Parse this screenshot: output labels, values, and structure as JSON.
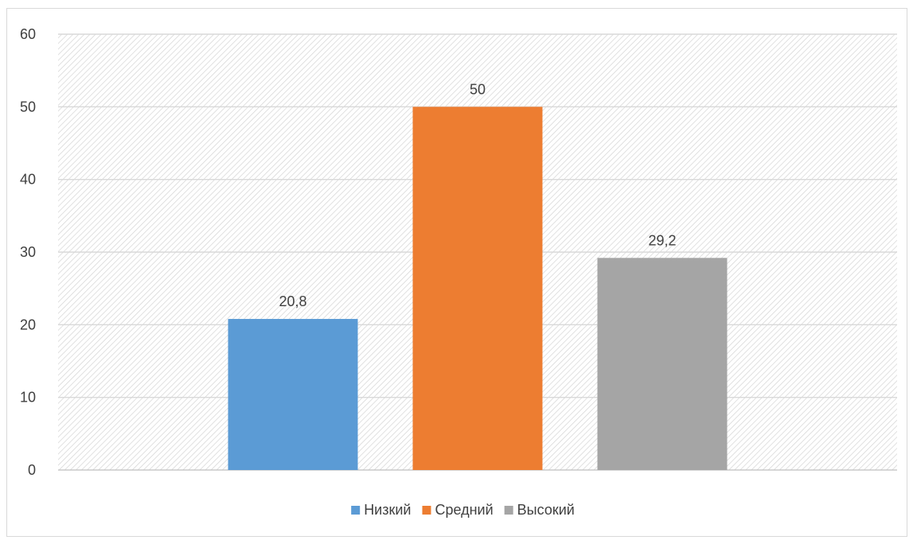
{
  "chart_data": {
    "type": "bar",
    "categories": [
      "Низкий",
      "Средний",
      "Высокий"
    ],
    "values": [
      20.8,
      50,
      29.2
    ],
    "value_labels": [
      "20,8",
      "50",
      "29,2"
    ],
    "colors": [
      "#5b9bd5",
      "#ed7d31",
      "#a5a5a5"
    ],
    "ylim": [
      0,
      60
    ],
    "yticks": [
      0,
      10,
      20,
      30,
      40,
      50,
      60
    ],
    "ytick_labels": [
      "0",
      "10",
      "20",
      "30",
      "40",
      "50",
      "60"
    ],
    "grid": true,
    "plot_background": "diagonal-hatch",
    "legend_position": "bottom",
    "legend": [
      {
        "label": "Низкий",
        "color": "#5b9bd5"
      },
      {
        "label": "Средний",
        "color": "#ed7d31"
      },
      {
        "label": "Высокий",
        "color": "#a5a5a5"
      }
    ],
    "title": "",
    "xlabel": "",
    "ylabel": ""
  }
}
